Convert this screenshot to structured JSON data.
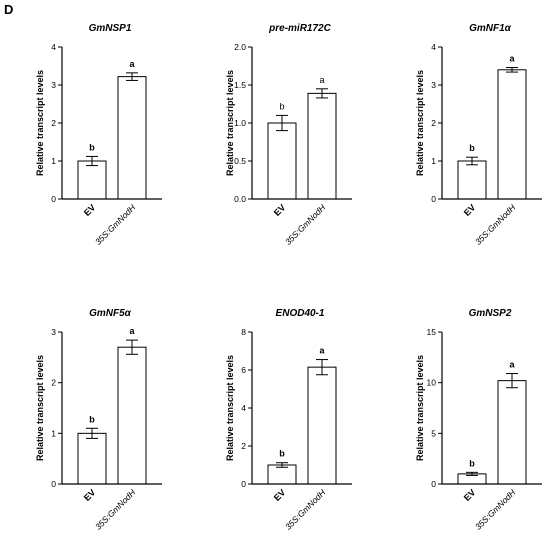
{
  "panel_label": "D",
  "chart_data": [
    {
      "type": "bar",
      "title": "GmNSP1",
      "ylabel": "Relative transcript levels",
      "categories": [
        "EV",
        "35S:GmNodH"
      ],
      "values": [
        1.0,
        3.22
      ],
      "errors": [
        0.12,
        0.1
      ],
      "letters": [
        "b",
        "a"
      ],
      "letter_bold": true,
      "ylim": [
        0,
        4
      ],
      "yticks": [
        "0",
        "1",
        "2",
        "3",
        "4"
      ]
    },
    {
      "type": "bar",
      "title": "pre-miR172C",
      "ylabel": "Relative transcript levels",
      "categories": [
        "EV",
        "35S:GmNodH"
      ],
      "values": [
        1.0,
        1.39
      ],
      "errors": [
        0.1,
        0.06
      ],
      "letters": [
        "b",
        "a"
      ],
      "letter_bold": false,
      "ylim": [
        0,
        2.0
      ],
      "yticks": [
        "0.0",
        "0.5",
        "1.0",
        "1.5",
        "2.0"
      ]
    },
    {
      "type": "bar",
      "title": "GmNF1α",
      "ylabel": "Relative transcript levels",
      "categories": [
        "EV",
        "35S:GmNodH"
      ],
      "values": [
        1.0,
        3.4
      ],
      "errors": [
        0.1,
        0.06
      ],
      "letters": [
        "b",
        "a"
      ],
      "letter_bold": true,
      "ylim": [
        0,
        4
      ],
      "yticks": [
        "0",
        "1",
        "2",
        "3",
        "4"
      ]
    },
    {
      "type": "bar",
      "title": "GmNF5α",
      "ylabel": "Relative transcript levels",
      "categories": [
        "EV",
        "35S:GmNodH"
      ],
      "values": [
        1.0,
        2.7
      ],
      "errors": [
        0.1,
        0.14
      ],
      "letters": [
        "b",
        "a"
      ],
      "letter_bold": true,
      "ylim": [
        0,
        3
      ],
      "yticks": [
        "0",
        "1",
        "2",
        "3"
      ]
    },
    {
      "type": "bar",
      "title": "ENOD40-1",
      "ylabel": "Relative transcript levels",
      "categories": [
        "EV",
        "35S:GmNodH"
      ],
      "values": [
        1.0,
        6.15
      ],
      "errors": [
        0.12,
        0.4
      ],
      "letters": [
        "b",
        "a"
      ],
      "letter_bold": true,
      "ylim": [
        0,
        8
      ],
      "yticks": [
        "0",
        "2",
        "4",
        "6",
        "8"
      ]
    },
    {
      "type": "bar",
      "title": "GmNSP2",
      "ylabel": "Relative transcript levels",
      "categories": [
        "EV",
        "35S:GmNodH"
      ],
      "values": [
        1.0,
        10.2
      ],
      "errors": [
        0.15,
        0.7
      ],
      "letters": [
        "b",
        "a"
      ],
      "letter_bold": true,
      "ylim": [
        0,
        15
      ],
      "yticks": [
        "0",
        "5",
        "10",
        "15"
      ]
    }
  ]
}
